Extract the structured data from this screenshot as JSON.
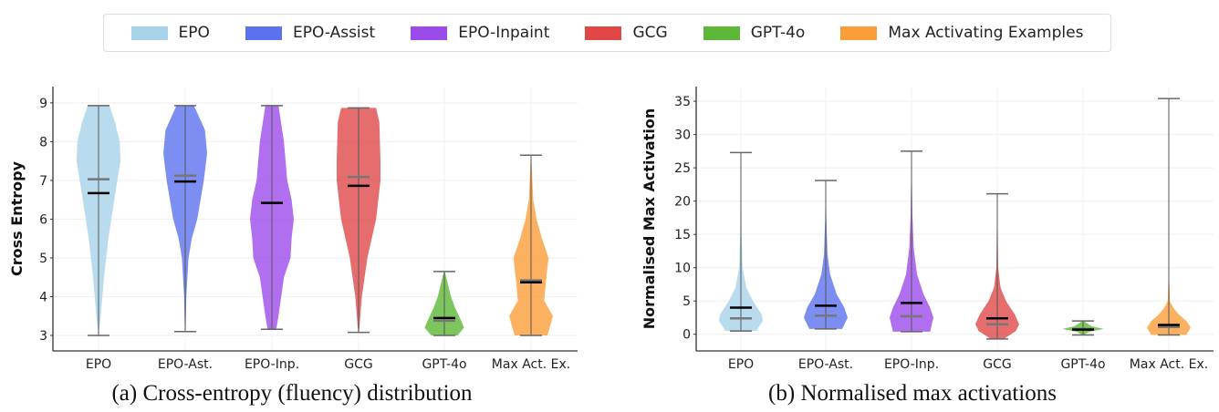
{
  "legend": [
    {
      "label": "EPO",
      "color": "#a6d3ea"
    },
    {
      "label": "EPO-Assist",
      "color": "#5b72ee"
    },
    {
      "label": "EPO-Inpaint",
      "color": "#9b4bea"
    },
    {
      "label": "GCG",
      "color": "#e04848"
    },
    {
      "label": "GPT-4o",
      "color": "#5cb836"
    },
    {
      "label": "Max Activating Examples",
      "color": "#fb9e3a"
    }
  ],
  "captions": {
    "a": "(a) Cross-entropy (fluency) distribution",
    "b": "(b) Normalised max activations"
  },
  "chart_data": [
    {
      "type": "violin",
      "title": "",
      "xlabel": "",
      "ylabel": "Cross Entropy",
      "ylim": [
        2.6,
        9.42
      ],
      "yticks": [
        3,
        4,
        5,
        6,
        7,
        8,
        9
      ],
      "grid": true,
      "categories": [
        "EPO",
        "EPO-Ast.",
        "EPO-Inp.",
        "GCG",
        "GPT-4o",
        "Max Act. Ex."
      ],
      "colors": [
        "#a6d3ea",
        "#5b72ee",
        "#9b4bea",
        "#e04848",
        "#5cb836",
        "#fb9e3a"
      ],
      "series": [
        {
          "min": 3.0,
          "max": 8.93,
          "mean": 6.67,
          "median": 7.03,
          "density": [
            [
              3,
              0
            ],
            [
              3.5,
              0.1
            ],
            [
              4.5,
              0.25
            ],
            [
              5.5,
              0.45
            ],
            [
              6.5,
              0.72
            ],
            [
              7.5,
              1
            ],
            [
              8,
              0.97
            ],
            [
              8.5,
              0.75
            ],
            [
              8.93,
              0.5
            ]
          ]
        },
        {
          "min": 3.1,
          "max": 8.93,
          "mean": 6.97,
          "median": 7.12,
          "density": [
            [
              3.1,
              0.02
            ],
            [
              4,
              0.05
            ],
            [
              5,
              0.15
            ],
            [
              5.5,
              0.3
            ],
            [
              6,
              0.55
            ],
            [
              7,
              0.85
            ],
            [
              7.7,
              1
            ],
            [
              8.3,
              0.9
            ],
            [
              8.93,
              0.4
            ]
          ]
        },
        {
          "min": 3.16,
          "max": 8.93,
          "mean": 6.42,
          "median": 6.42,
          "density": [
            [
              3.16,
              0.2
            ],
            [
              3.5,
              0.3
            ],
            [
              4.5,
              0.55
            ],
            [
              5,
              0.85
            ],
            [
              5.5,
              0.9
            ],
            [
              6,
              1
            ],
            [
              6.5,
              0.9
            ],
            [
              7,
              0.7
            ],
            [
              8,
              0.55
            ],
            [
              8.93,
              0.3
            ]
          ]
        },
        {
          "min": 3.08,
          "max": 8.87,
          "mean": 6.86,
          "median": 7.09,
          "density": [
            [
              3.08,
              0.02
            ],
            [
              4,
              0.15
            ],
            [
              5,
              0.4
            ],
            [
              6,
              0.8
            ],
            [
              7,
              1
            ],
            [
              7.5,
              1
            ],
            [
              8.5,
              0.95
            ],
            [
              8.87,
              0.8
            ]
          ]
        },
        {
          "min": 3.0,
          "max": 4.65,
          "mean": 3.45,
          "median": 3.38,
          "density": [
            [
              3.0,
              0.6
            ],
            [
              3.2,
              0.9
            ],
            [
              3.4,
              0.75
            ],
            [
              3.7,
              0.5
            ],
            [
              4,
              0.3
            ],
            [
              4.65,
              0.02
            ]
          ]
        },
        {
          "min": 3.0,
          "max": 7.65,
          "mean": 4.37,
          "median": 4.42,
          "density": [
            [
              3.0,
              0.75
            ],
            [
              3.5,
              1
            ],
            [
              3.9,
              0.6
            ],
            [
              4.5,
              0.7
            ],
            [
              5,
              0.8
            ],
            [
              5.5,
              0.5
            ],
            [
              6,
              0.25
            ],
            [
              6.5,
              0.1
            ],
            [
              7.65,
              0.01
            ]
          ]
        }
      ]
    },
    {
      "type": "violin",
      "title": "",
      "xlabel": "",
      "ylabel": "Normalised Max Activation",
      "ylim": [
        -2.5,
        37.2
      ],
      "yticks": [
        0,
        5,
        10,
        15,
        20,
        25,
        30,
        35
      ],
      "grid": true,
      "categories": [
        "EPO",
        "EPO-Ast.",
        "EPO-Inp.",
        "GCG",
        "GPT-4o",
        "Max Act. Ex."
      ],
      "colors": [
        "#a6d3ea",
        "#5b72ee",
        "#9b4bea",
        "#e04848",
        "#5cb836",
        "#fb9e3a"
      ],
      "series": [
        {
          "min": 0.5,
          "max": 27.3,
          "mean": 4.0,
          "median": 2.4,
          "density": [
            [
              0.5,
              0.7
            ],
            [
              2,
              1
            ],
            [
              3,
              0.95
            ],
            [
              5,
              0.55
            ],
            [
              7,
              0.25
            ],
            [
              10,
              0.08
            ],
            [
              15,
              0.03
            ],
            [
              27.3,
              0.005
            ]
          ]
        },
        {
          "min": 0.8,
          "max": 23.1,
          "mean": 4.3,
          "median": 2.8,
          "density": [
            [
              0.8,
              0.75
            ],
            [
              2.5,
              1
            ],
            [
              4,
              0.85
            ],
            [
              6,
              0.5
            ],
            [
              9,
              0.2
            ],
            [
              12,
              0.08
            ],
            [
              17,
              0.03
            ],
            [
              23.1,
              0.005
            ]
          ]
        },
        {
          "min": 0.4,
          "max": 27.5,
          "mean": 4.7,
          "median": 2.7,
          "density": [
            [
              0.4,
              0.85
            ],
            [
              2.5,
              1
            ],
            [
              4,
              0.85
            ],
            [
              6,
              0.55
            ],
            [
              9,
              0.25
            ],
            [
              13,
              0.1
            ],
            [
              18,
              0.04
            ],
            [
              27.5,
              0.005
            ]
          ]
        },
        {
          "min": -0.7,
          "max": 21.1,
          "mean": 2.4,
          "median": 1.5,
          "density": [
            [
              -0.7,
              0.3
            ],
            [
              0.5,
              0.85
            ],
            [
              1.5,
              1
            ],
            [
              3,
              0.8
            ],
            [
              5,
              0.4
            ],
            [
              7,
              0.15
            ],
            [
              10,
              0.04
            ],
            [
              21.1,
              0.005
            ]
          ]
        },
        {
          "min": -0.1,
          "max": 2.0,
          "mean": 0.7,
          "median": 0.8,
          "density": [
            [
              -0.1,
              0.02
            ],
            [
              0.4,
              0.3
            ],
            [
              0.8,
              0.95
            ],
            [
              1.2,
              0.4
            ],
            [
              2,
              0.02
            ]
          ]
        },
        {
          "min": -0.1,
          "max": 35.4,
          "mean": 1.4,
          "median": 1.1,
          "density": [
            [
              -0.1,
              0.8
            ],
            [
              1,
              1
            ],
            [
              2,
              0.8
            ],
            [
              3,
              0.45
            ],
            [
              4,
              0.2
            ],
            [
              5,
              0.05
            ],
            [
              10,
              0.005
            ],
            [
              35.4,
              0.003
            ]
          ]
        }
      ]
    }
  ]
}
